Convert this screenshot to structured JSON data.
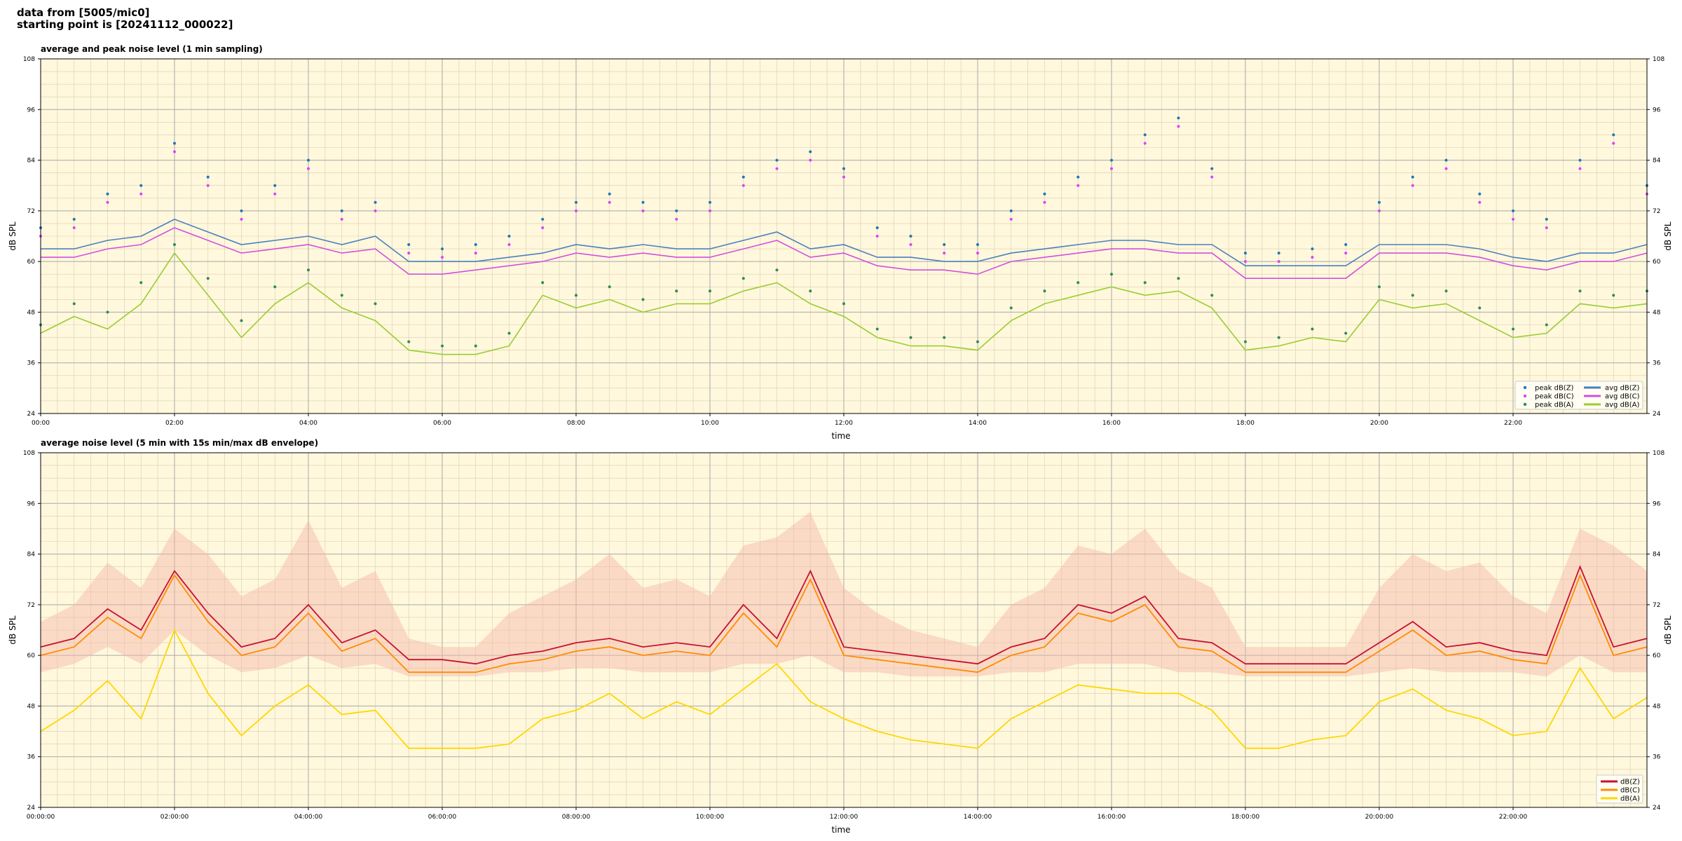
{
  "figure": {
    "header_line1": "data from [5005/mic0]",
    "header_line2": "starting point is [20241112_000022]"
  },
  "colors": {
    "plot_bg": "#fff8dc",
    "major_grid": "#a9a9a9",
    "minor_grid": "#d9ccb3",
    "peak_z": "#1f77b4",
    "peak_c": "#e040fb",
    "peak_a": "#2e8b57",
    "avg_z": "#4a7fc0",
    "avg_c": "#d24fe0",
    "avg_a": "#9acd32",
    "avg_purple_overlay": "#b07fdc",
    "line_z": "#c8102e",
    "line_c": "#ff8c00",
    "line_a": "#ffd700",
    "envelope": "#f4b6a8"
  },
  "chart_data": [
    {
      "type": "line",
      "title": "average and peak noise level (1 min sampling)",
      "xlabel": "time",
      "ylabel": "dB SPL",
      "ylim": [
        24,
        108
      ],
      "yticks": [
        24,
        36,
        48,
        60,
        72,
        84,
        96,
        108
      ],
      "xticks": [
        "00:00",
        "02:00",
        "04:00",
        "06:00",
        "08:00",
        "10:00",
        "12:00",
        "14:00",
        "16:00",
        "18:00",
        "20:00",
        "22:00"
      ],
      "xrange_hours": [
        0,
        24
      ],
      "grid": true,
      "legend_position": "bottom-right",
      "legend": [
        "peak dB(Z)",
        "peak dB(C)",
        "peak dB(A)",
        "avg dB(Z)",
        "avg dB(C)",
        "avg dB(A)"
      ],
      "x_hours": [
        0.0,
        0.5,
        1.0,
        1.5,
        2.0,
        2.5,
        3.0,
        3.5,
        4.0,
        4.5,
        5.0,
        5.5,
        6.0,
        6.5,
        7.0,
        7.5,
        8.0,
        8.5,
        9.0,
        9.5,
        10.0,
        10.5,
        11.0,
        11.5,
        12.0,
        12.5,
        13.0,
        13.5,
        14.0,
        14.5,
        15.0,
        15.5,
        16.0,
        16.5,
        17.0,
        17.5,
        18.0,
        18.5,
        19.0,
        19.5,
        20.0,
        20.5,
        21.0,
        21.5,
        22.0,
        22.5,
        23.0,
        23.5,
        24.0
      ],
      "series": [
        {
          "name": "avg dB(Z)",
          "values": [
            63,
            63,
            65,
            66,
            70,
            67,
            64,
            65,
            66,
            64,
            66,
            60,
            60,
            60,
            61,
            62,
            64,
            63,
            64,
            63,
            63,
            65,
            67,
            63,
            64,
            61,
            61,
            60,
            60,
            62,
            63,
            64,
            65,
            65,
            64,
            64,
            59,
            59,
            59,
            59,
            64,
            64,
            64,
            63,
            61,
            60,
            62,
            62,
            64
          ]
        },
        {
          "name": "avg dB(C)",
          "values": [
            61,
            61,
            63,
            64,
            68,
            65,
            62,
            63,
            64,
            62,
            63,
            57,
            57,
            58,
            59,
            60,
            62,
            61,
            62,
            61,
            61,
            63,
            65,
            61,
            62,
            59,
            58,
            58,
            57,
            60,
            61,
            62,
            63,
            63,
            62,
            62,
            56,
            56,
            56,
            56,
            62,
            62,
            62,
            61,
            59,
            58,
            60,
            60,
            62
          ]
        },
        {
          "name": "avg dB(A)",
          "values": [
            43,
            47,
            44,
            50,
            62,
            52,
            42,
            50,
            55,
            49,
            46,
            39,
            38,
            38,
            40,
            52,
            49,
            51,
            48,
            50,
            50,
            53,
            55,
            50,
            47,
            42,
            40,
            40,
            39,
            46,
            50,
            52,
            54,
            52,
            53,
            49,
            39,
            40,
            42,
            41,
            51,
            49,
            50,
            46,
            42,
            43,
            50,
            49,
            50
          ]
        },
        {
          "name": "peak dB(Z)",
          "values": [
            68,
            70,
            76,
            78,
            88,
            80,
            72,
            78,
            84,
            72,
            74,
            64,
            63,
            64,
            66,
            70,
            74,
            76,
            74,
            72,
            74,
            80,
            84,
            86,
            82,
            68,
            66,
            64,
            64,
            72,
            76,
            80,
            84,
            90,
            94,
            82,
            62,
            62,
            63,
            64,
            74,
            80,
            84,
            76,
            72,
            70,
            84,
            90,
            78
          ]
        },
        {
          "name": "peak dB(C)",
          "values": [
            66,
            68,
            74,
            76,
            86,
            78,
            70,
            76,
            82,
            70,
            72,
            62,
            61,
            62,
            64,
            68,
            72,
            74,
            72,
            70,
            72,
            78,
            82,
            84,
            80,
            66,
            64,
            62,
            62,
            70,
            74,
            78,
            82,
            88,
            92,
            80,
            60,
            60,
            61,
            62,
            72,
            78,
            82,
            74,
            70,
            68,
            82,
            88,
            76
          ]
        },
        {
          "name": "peak dB(A)",
          "values": [
            45,
            50,
            48,
            55,
            64,
            56,
            46,
            54,
            58,
            52,
            50,
            41,
            40,
            40,
            43,
            55,
            52,
            54,
            51,
            53,
            53,
            56,
            58,
            53,
            50,
            44,
            42,
            42,
            41,
            49,
            53,
            55,
            57,
            55,
            56,
            52,
            41,
            42,
            44,
            43,
            54,
            52,
            53,
            49,
            44,
            45,
            53,
            52,
            53
          ]
        }
      ]
    },
    {
      "type": "line",
      "title": "average noise level (5 min with 15s min/max dB envelope)",
      "xlabel": "time",
      "ylabel": "dB SPL",
      "ylim": [
        24,
        108
      ],
      "yticks": [
        24,
        36,
        48,
        60,
        72,
        84,
        96,
        108
      ],
      "xticks": [
        "00:00:00",
        "02:00:00",
        "04:00:00",
        "06:00:00",
        "08:00:00",
        "10:00:00",
        "12:00:00",
        "14:00:00",
        "16:00:00",
        "18:00:00",
        "20:00:00",
        "22:00:00"
      ],
      "xrange_hours": [
        0,
        24
      ],
      "grid": true,
      "legend_position": "bottom-right",
      "legend": [
        "dB(Z)",
        "dB(C)",
        "dB(A)"
      ],
      "x_hours": [
        0.0,
        0.5,
        1.0,
        1.5,
        2.0,
        2.5,
        3.0,
        3.5,
        4.0,
        4.5,
        5.0,
        5.5,
        6.0,
        6.5,
        7.0,
        7.5,
        8.0,
        8.5,
        9.0,
        9.5,
        10.0,
        10.5,
        11.0,
        11.5,
        12.0,
        12.5,
        13.0,
        13.5,
        14.0,
        14.5,
        15.0,
        15.5,
        16.0,
        16.5,
        17.0,
        17.5,
        18.0,
        18.5,
        19.0,
        19.5,
        20.0,
        20.5,
        21.0,
        21.5,
        22.0,
        22.5,
        23.0,
        23.5,
        24.0
      ],
      "series": [
        {
          "name": "dB(Z)",
          "values": [
            62,
            64,
            71,
            66,
            80,
            70,
            62,
            64,
            72,
            63,
            66,
            59,
            59,
            58,
            60,
            61,
            63,
            64,
            62,
            63,
            62,
            72,
            64,
            80,
            62,
            61,
            60,
            59,
            58,
            62,
            64,
            72,
            70,
            74,
            64,
            63,
            58,
            58,
            58,
            58,
            63,
            68,
            62,
            63,
            61,
            60,
            81,
            62,
            64
          ]
        },
        {
          "name": "dB(C)",
          "values": [
            60,
            62,
            69,
            64,
            79,
            68,
            60,
            62,
            70,
            61,
            64,
            56,
            56,
            56,
            58,
            59,
            61,
            62,
            60,
            61,
            60,
            70,
            62,
            78,
            60,
            59,
            58,
            57,
            56,
            60,
            62,
            70,
            68,
            72,
            62,
            61,
            56,
            56,
            56,
            56,
            61,
            66,
            60,
            61,
            59,
            58,
            79,
            60,
            62
          ]
        },
        {
          "name": "dB(A)",
          "values": [
            42,
            47,
            54,
            45,
            66,
            51,
            41,
            48,
            53,
            46,
            47,
            38,
            38,
            38,
            39,
            45,
            47,
            51,
            45,
            49,
            46,
            52,
            58,
            49,
            45,
            42,
            40,
            39,
            38,
            45,
            49,
            53,
            52,
            51,
            51,
            47,
            38,
            38,
            40,
            41,
            49,
            52,
            47,
            45,
            41,
            42,
            57,
            45,
            50
          ]
        },
        {
          "name": "envelope max",
          "values": [
            68,
            72,
            82,
            76,
            90,
            84,
            74,
            78,
            92,
            76,
            80,
            64,
            62,
            62,
            70,
            74,
            78,
            84,
            76,
            78,
            74,
            86,
            88,
            94,
            76,
            70,
            66,
            64,
            62,
            72,
            76,
            86,
            84,
            90,
            80,
            76,
            62,
            62,
            62,
            62,
            76,
            84,
            80,
            82,
            74,
            70,
            90,
            86,
            80
          ]
        },
        {
          "name": "envelope min",
          "values": [
            56,
            58,
            62,
            58,
            66,
            60,
            56,
            57,
            60,
            57,
            58,
            55,
            55,
            55,
            56,
            56,
            57,
            57,
            56,
            56,
            56,
            58,
            58,
            60,
            56,
            56,
            55,
            55,
            55,
            56,
            56,
            58,
            58,
            58,
            56,
            56,
            55,
            55,
            55,
            55,
            56,
            57,
            56,
            56,
            56,
            55,
            60,
            56,
            56
          ]
        }
      ]
    }
  ]
}
